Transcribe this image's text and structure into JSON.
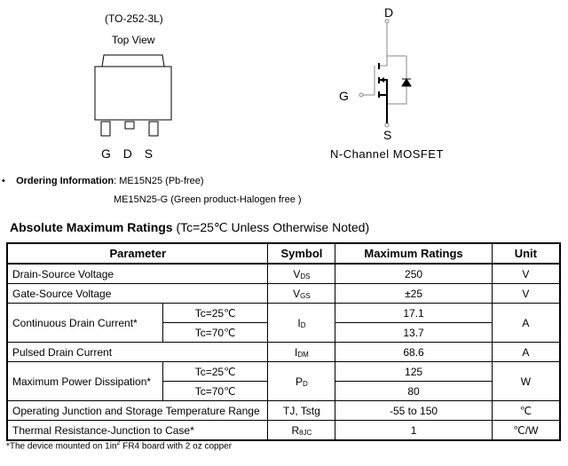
{
  "package": {
    "name": "(TO-252-3L)",
    "view": "Top View",
    "pins": [
      "G",
      "D",
      "S"
    ]
  },
  "schematic": {
    "drain": "D",
    "gate": "G",
    "source": "S",
    "caption": "N-Channel MOSFET"
  },
  "ordering": {
    "bullet": "•",
    "label": "Ordering Information",
    "line1": ": ME15N25 (Pb-free)",
    "line2": "ME15N25-G (Green product-Halogen free )"
  },
  "section": {
    "title": "Absolute Maximum Ratings",
    "condition": "(Tc=25℃ Unless Otherwise Noted)"
  },
  "table": {
    "headers": [
      "Parameter",
      "Symbol",
      "Maximum Ratings",
      "Unit"
    ],
    "rows": [
      {
        "param": "Drain-Source Voltage",
        "sym": "V",
        "sub": "DS",
        "value": "250",
        "unit": "V"
      },
      {
        "param": "Gate-Source Voltage",
        "sym": "V",
        "sub": "GS",
        "value": "±25",
        "unit": "V"
      },
      {
        "param": "Continuous Drain Current*",
        "cond1": "Tc=25℃",
        "cond2": "Tc=70℃",
        "sym": "I",
        "sub": "D",
        "value1": "17.1",
        "value2": "13.7",
        "unit": "A"
      },
      {
        "param": "Pulsed Drain Current",
        "sym": "I",
        "sub": "DM",
        "value": "68.6",
        "unit": "A"
      },
      {
        "param": "Maximum Power Dissipation*",
        "cond1": "Tc=25℃",
        "cond2": "Tc=70℃",
        "sym": "P",
        "sub": "D",
        "value1": "125",
        "value2": "80",
        "unit": "W"
      },
      {
        "param": "Operating Junction and Storage Temperature Range",
        "sym": "TJ, Tstg",
        "value": "-55 to 150",
        "unit": "℃"
      },
      {
        "param": "Thermal Resistance-Junction to Case*",
        "sym": "R",
        "sub": "θJC",
        "value": "1",
        "unit": "℃/W"
      }
    ]
  },
  "footnote": {
    "pre": "*The device mounted on 1in",
    "sup": "2",
    "post": " FR4 board with 2 oz copper"
  }
}
